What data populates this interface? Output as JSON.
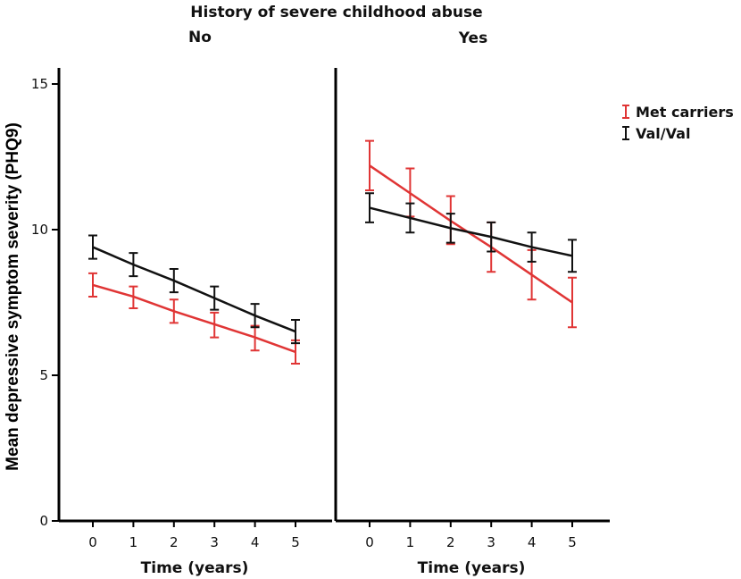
{
  "chart_data": {
    "type": "line",
    "title": "History of severe childhood abuse",
    "ylabel": "Mean depressive symptom severity (PHQ9)",
    "ylim": [
      0,
      15
    ],
    "yticks": [
      0,
      5,
      10,
      15
    ],
    "x": [
      0,
      1,
      2,
      3,
      4,
      5
    ],
    "xtick_labels": [
      "0",
      "1",
      "2",
      "3",
      "4",
      "5"
    ],
    "legend": {
      "placement": "top-right",
      "entries": [
        {
          "name": "Met carriers",
          "color": "#e03535"
        },
        {
          "name": "Val/Val",
          "color": "#111111"
        }
      ]
    },
    "panels": [
      {
        "label": "No",
        "xlabel": "Time (years)",
        "series": [
          {
            "name": "Met carriers",
            "color": "#e03535",
            "values": [
              8.1,
              7.7,
              7.2,
              6.75,
              6.3,
              5.8
            ],
            "lower": [
              7.7,
              7.3,
              6.8,
              6.3,
              5.85,
              5.4
            ],
            "upper": [
              8.5,
              8.05,
              7.6,
              7.15,
              6.7,
              6.2
            ]
          },
          {
            "name": "Val/Val",
            "color": "#111111",
            "values": [
              9.4,
              8.8,
              8.25,
              7.65,
              7.05,
              6.5
            ],
            "lower": [
              9.0,
              8.4,
              7.85,
              7.25,
              6.65,
              6.1
            ],
            "upper": [
              9.8,
              9.2,
              8.65,
              8.05,
              7.45,
              6.9
            ]
          }
        ]
      },
      {
        "label": "Yes",
        "xlabel": "Time (years)",
        "series": [
          {
            "name": "Met carriers",
            "color": "#e03535",
            "values": [
              12.2,
              11.25,
              10.3,
              9.4,
              8.45,
              7.5
            ],
            "lower": [
              11.35,
              10.45,
              9.5,
              8.55,
              7.6,
              6.65
            ],
            "upper": [
              13.05,
              12.1,
              11.15,
              10.25,
              9.3,
              8.35
            ]
          },
          {
            "name": "Val/Val",
            "color": "#111111",
            "values": [
              10.75,
              10.4,
              10.05,
              9.75,
              9.4,
              9.1
            ],
            "lower": [
              10.25,
              9.9,
              9.55,
              9.25,
              8.9,
              8.55
            ],
            "upper": [
              11.25,
              10.9,
              10.55,
              10.25,
              9.9,
              9.65
            ]
          }
        ]
      }
    ]
  }
}
